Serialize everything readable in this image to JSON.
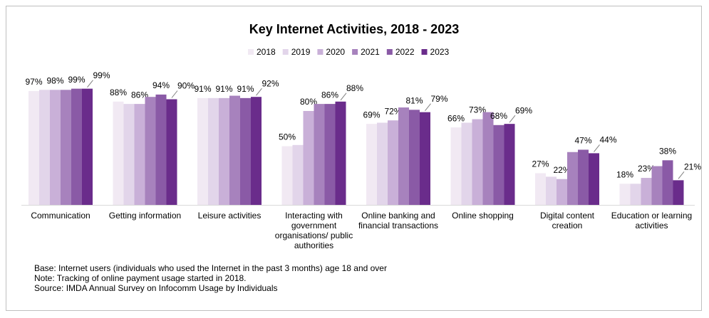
{
  "chart_data": {
    "type": "bar",
    "title": "Key Internet Activities, 2018 - 2023",
    "categories": [
      "Communication",
      "Getting information",
      "Leisure activities",
      "Interacting with government organisations/ public authorities",
      "Online banking and financial transactions",
      "Online shopping",
      "Digital content creation",
      "Education or learning activities"
    ],
    "series": [
      {
        "name": "2018",
        "color": "#f1e9f3",
        "values": [
          97,
          88,
          91,
          50,
          69,
          66,
          27,
          18
        ],
        "value_labels": [
          "97%",
          "88%",
          "91%",
          "50%",
          "69%",
          "66%",
          "27%",
          "18%"
        ]
      },
      {
        "name": "2019",
        "color": "#e2d5ea",
        "values": [
          98,
          86,
          91,
          51,
          70,
          70,
          24,
          18
        ]
      },
      {
        "name": "2020",
        "color": "#c9b0d8",
        "values": [
          98,
          86,
          91,
          80,
          72,
          73,
          22,
          23
        ],
        "value_labels": [
          "98%",
          "86%",
          "91%",
          "80%",
          "72%",
          "73%",
          "22%",
          "23%"
        ]
      },
      {
        "name": "2021",
        "color": "#a782bd",
        "values": [
          98,
          92,
          93,
          86,
          83,
          79,
          45,
          33
        ]
      },
      {
        "name": "2022",
        "color": "#8a5aa6",
        "values": [
          99,
          94,
          91,
          86,
          81,
          68,
          47,
          38
        ],
        "value_labels": [
          "99%",
          "94%",
          "91%",
          "86%",
          "81%",
          "68%",
          "47%",
          "38%"
        ]
      },
      {
        "name": "2023",
        "color": "#6a2c8b",
        "values": [
          99,
          90,
          92,
          88,
          79,
          69,
          44,
          21
        ],
        "value_labels": [
          "99%",
          "90%",
          "92%",
          "88%",
          "79%",
          "69%",
          "44%",
          "21%"
        ]
      }
    ],
    "ylim": [
      0,
      100
    ],
    "notes": [
      "Base: Internet users (individuals who used the Internet in the past 3 months) age 18 and over",
      "Note: Tracking of online payment usage started in 2018.",
      "Source: IMDA Annual Survey on Infocomm Usage by Individuals"
    ]
  }
}
